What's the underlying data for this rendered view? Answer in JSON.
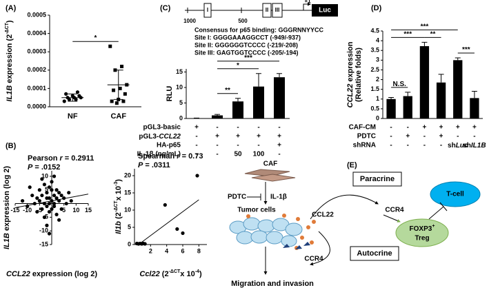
{
  "figure": {
    "panels": [
      "(A)",
      "(B)",
      "(C)",
      "(D)",
      "(E)"
    ]
  },
  "promoter": {
    "sites": [
      "I",
      "II",
      "III"
    ],
    "reporter": "Luc",
    "tss": "+1",
    "positions": [
      "1000",
      "500"
    ],
    "consensus": "Consensus for p65 binding: GGGRNNYYCC",
    "site_lines": [
      "Site I: GGGGAAAGGCCT (-949/-937)",
      "Site II: GGGGGGTCCCC (-219/-208)",
      "Site III: GAGTGGTCCCC (-205/-194)"
    ]
  },
  "diagram": {
    "caf": "CAF",
    "pdtc": "PDTC",
    "il1b": "IL-1β",
    "tumor": "Tumor cells",
    "ccl22": "CCL22",
    "paracrine": "Paracrine",
    "ccr4_para": "CCR4",
    "tcell": "T-cell",
    "foxp3": "FOXP3",
    "foxp3_sup": "+",
    "treg": "Treg",
    "autocrine": "Autocrine",
    "ccr4_auto": "CCR4",
    "migration": "Migration and invasion"
  },
  "chart_data": [
    {
      "type": "strip",
      "categories": [
        "NF",
        "CAF"
      ],
      "markers": [
        "circle",
        "square"
      ],
      "color": "#000000",
      "values": [
        [
          3e-05,
          4e-05,
          4e-05,
          5e-05,
          5e-05,
          5e-05,
          6e-05,
          6e-05,
          7e-05,
          8e-05
        ],
        [
          0.00033,
          0.00022,
          0.0002,
          0.00012,
          0.0001,
          9e-05,
          7e-05,
          4e-05,
          3e-05,
          3e-05,
          2e-05
        ]
      ],
      "means": [
        5e-05,
        0.00012
      ],
      "errors": [
        2e-05,
        8e-05
      ],
      "ylabel": [
        {
          "text": "IL1B",
          "italic": true
        },
        {
          "text": " expression (2"
        },
        {
          "text": "-ΔCT",
          "sup": true
        },
        {
          "text": ")"
        }
      ],
      "ylim": [
        0,
        0.0005
      ],
      "yticks": [
        {
          "value": 0,
          "label": "0.0000"
        },
        {
          "value": 0.0001,
          "label": "0.0001"
        },
        {
          "value": 0.0002,
          "label": "0.0002"
        },
        {
          "value": 0.0003,
          "label": "0.0003"
        },
        {
          "value": 0.0004,
          "label": "0.0004"
        },
        {
          "value": 0.0005,
          "label": "0.0005"
        }
      ],
      "significance": [
        {
          "from": 0,
          "to": 1,
          "label": "*"
        }
      ]
    },
    {
      "type": "scatter",
      "axes_cross_origin": true,
      "color": "#000000",
      "x": [
        -12,
        -10,
        -8,
        -7,
        -6,
        -6,
        -5,
        -5,
        -4,
        -4,
        -3,
        -3,
        -3,
        -2,
        -2,
        -2,
        -1,
        -1,
        -1,
        -1,
        0,
        0,
        0,
        0,
        1,
        1,
        1,
        2,
        2,
        2,
        3,
        3,
        4,
        4,
        5,
        6,
        7,
        -2,
        -1,
        -4,
        1,
        8,
        -9,
        3
      ],
      "y": [
        1,
        -1,
        3,
        0,
        2,
        -3,
        1,
        5,
        -2,
        3,
        0,
        7,
        -5,
        2,
        -1,
        4,
        0,
        6,
        -3,
        2,
        1,
        -2,
        5,
        8,
        3,
        -1,
        0,
        2,
        5,
        -4,
        1,
        4,
        -2,
        3,
        2,
        0,
        4,
        -8,
        -11,
        9,
        10,
        1,
        6,
        -6
      ],
      "fit": {
        "x": [
          -15,
          15
        ],
        "y": [
          -1.5,
          3.5
        ]
      },
      "xlim": [
        -15,
        15
      ],
      "ylim": [
        -15,
        12
      ],
      "xticks": [
        -15,
        -10,
        -5,
        5,
        10,
        15
      ],
      "yticks": [
        -15,
        -10,
        -5,
        5,
        10
      ],
      "stats": [
        [
          {
            "text": "Pearson "
          },
          {
            "text": "r",
            "italic": true
          },
          {
            "text": " = 0.2911"
          }
        ],
        [
          {
            "text": "P",
            "italic": true
          },
          {
            "text": " = .0152"
          }
        ]
      ],
      "xlabel": [
        {
          "text": "CCL22",
          "italic": true
        },
        {
          "text": " expression (log 2)"
        }
      ],
      "ylabel": [
        {
          "text": "IL1B",
          "italic": true
        },
        {
          "text": " expression (log 2)"
        }
      ]
    },
    {
      "type": "scatter",
      "color": "#000000",
      "x": [
        0.3,
        0.5,
        0.7,
        0.9,
        1.1,
        1.3,
        3.8,
        5.3,
        6,
        7.8
      ],
      "y": [
        0.3,
        0.2,
        0.3,
        0.2,
        0.3,
        0.2,
        11.5,
        4.5,
        3.3,
        20
      ],
      "fit": {
        "x": [
          0.5,
          8
        ],
        "y": [
          0,
          13
        ]
      },
      "xlim": [
        0,
        9
      ],
      "ylim": [
        0,
        22
      ],
      "xticks": [
        2,
        4,
        6,
        8
      ],
      "yticks": [
        0,
        5,
        10,
        15,
        20
      ],
      "stats": [
        [
          {
            "text": "Spearman "
          },
          {
            "text": "r",
            "italic": true
          },
          {
            "text": " = 0.73"
          }
        ],
        [
          {
            "text": "P",
            "italic": true
          },
          {
            "text": " = .0311"
          }
        ]
      ],
      "xlabel": [
        {
          "text": "Ccl22",
          "italic": true
        },
        {
          "text": " (2"
        },
        {
          "text": "-ΔCT",
          "sup": true
        },
        {
          "text": "x 10"
        },
        {
          "text": "-4",
          "sup": true
        },
        {
          "text": ")"
        }
      ],
      "ylabel": [
        {
          "text": "Il1b",
          "italic": true
        },
        {
          "text": " (2"
        },
        {
          "text": "-ΔCT",
          "sup": true
        },
        {
          "text": "x 10"
        },
        {
          "text": "-3",
          "sup": true
        },
        {
          "text": ")"
        }
      ]
    },
    {
      "type": "bar",
      "color": "#000000",
      "values": [
        0.1,
        1,
        5.5,
        10.3,
        13.3
      ],
      "errors": [
        0.05,
        0.3,
        1,
        4.2,
        1.2
      ],
      "ylabel": [
        {
          "text": "RLU"
        }
      ],
      "ylim": [
        0,
        16
      ],
      "yticks": [
        0,
        5,
        10,
        15
      ],
      "rows": [
        {
          "label": "pGL3-basic",
          "cells": [
            "+",
            "-",
            "-",
            "-",
            "-"
          ]
        },
        {
          "label": [
            {
              "text": "pGL3-"
            },
            {
              "text": "CCL22",
              "italic": true
            }
          ],
          "cells": [
            "-",
            "+",
            "+",
            "+",
            "+"
          ]
        },
        {
          "label": "HA-p65",
          "cells": [
            "-",
            "-",
            "-",
            "-",
            "+"
          ]
        },
        {
          "label": "IL-1β (ng/mL)",
          "cells": [
            "-",
            "-",
            "50",
            "100",
            "-"
          ]
        }
      ],
      "significance": [
        {
          "from": 1,
          "to": 2,
          "label": "**"
        },
        {
          "from": 1,
          "to": 3,
          "label": "*"
        },
        {
          "from": 1,
          "to": 4,
          "label": "***"
        }
      ]
    },
    {
      "type": "bar",
      "color": "#000000",
      "values": [
        1,
        1.15,
        3.72,
        1.85,
        3,
        1.05
      ],
      "errors": [
        0.08,
        0.2,
        0.2,
        0.42,
        0.12,
        0.35
      ],
      "ylabel": [
        [
          {
            "text": "CCL22",
            "italic": true
          },
          {
            "text": " expression"
          }
        ],
        [
          {
            "text": "(Relative folds)"
          }
        ]
      ],
      "ylim": [
        0,
        4.5
      ],
      "yticks": [
        0,
        0.5,
        1,
        1.5,
        2,
        2.5,
        3,
        3.5,
        4,
        4.5
      ],
      "rows": [
        {
          "label": "CAF-CM",
          "cells": [
            "-",
            "-",
            "+",
            "+",
            "+",
            "+"
          ]
        },
        {
          "label": "PDTC",
          "cells": [
            "-",
            "+",
            "-",
            "+",
            "-",
            "-"
          ]
        },
        {
          "label": "shRNA",
          "cells": [
            "-",
            "-",
            "-",
            "-",
            [
              {
                "text": "sh"
              },
              {
                "text": "Luc",
                "italic": true
              }
            ],
            [
              {
                "text": "sh"
              },
              {
                "text": "IL1B",
                "italic": true
              }
            ]
          ]
        }
      ],
      "significance": [
        {
          "from": 0,
          "to": 1,
          "label": "N.S."
        },
        {
          "from": 2,
          "to": 3,
          "label": "**"
        },
        {
          "from": 0,
          "to": 2,
          "label": "***"
        },
        {
          "from": 4,
          "to": 5,
          "label": "***"
        },
        {
          "from": 0,
          "to": 4,
          "label": "***"
        }
      ]
    }
  ]
}
